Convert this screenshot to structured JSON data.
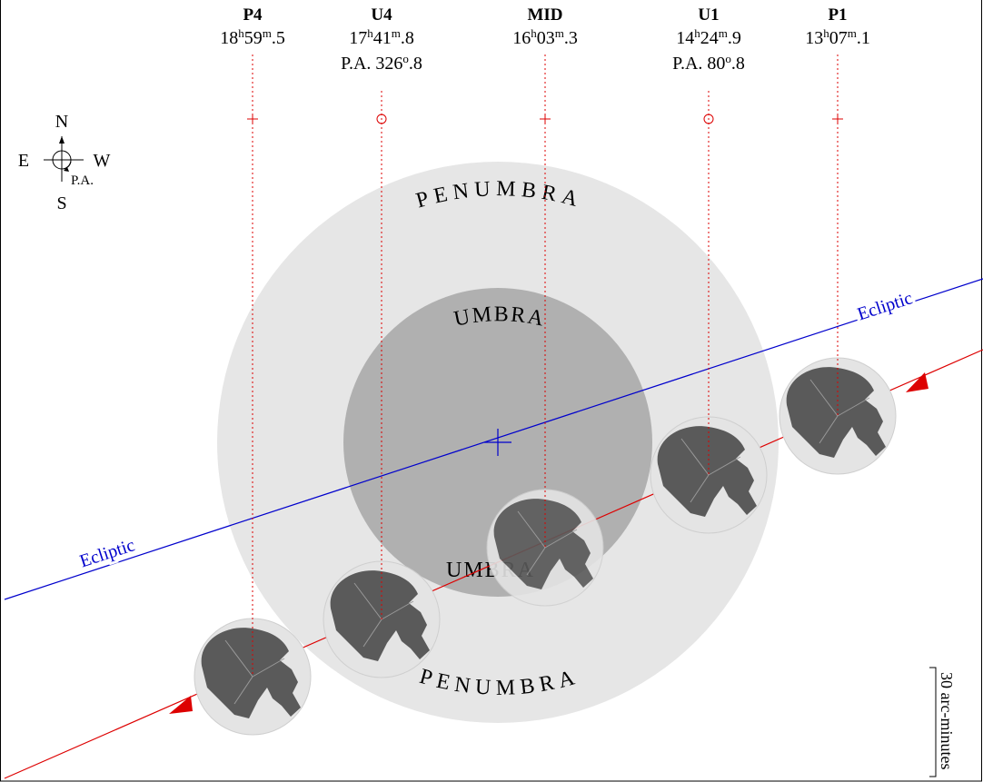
{
  "contacts": [
    {
      "name": "P4",
      "time": [
        "18",
        "h",
        "59",
        "m",
        ".5"
      ]
    },
    {
      "name": "U4",
      "time": [
        "17",
        "h",
        "41",
        "m",
        ".8"
      ],
      "pa": [
        "P.A. 326",
        "o",
        ".8"
      ]
    },
    {
      "name": "MID",
      "time": [
        "16",
        "h",
        "03",
        "m",
        ".3"
      ]
    },
    {
      "name": "U1",
      "time": [
        "14",
        "h",
        "24",
        "m",
        ".9"
      ],
      "pa": [
        "P.A. 80",
        "o",
        ".8"
      ]
    },
    {
      "name": "P1",
      "time": [
        "13",
        "h",
        "07",
        "m",
        ".1"
      ]
    }
  ],
  "compass": {
    "north": "N",
    "east": "E",
    "west": "W",
    "south": "S",
    "pa": "P.A."
  },
  "regions": {
    "penumbra_top": "PENUMBRA",
    "penumbra_bottom": "PENUMBRA",
    "umbra_top": "UMBRA",
    "umbra_bottom": "UMBRA"
  },
  "ecliptic_labels": [
    "Ecliptic",
    "Ecliptic"
  ],
  "scale_label": "30 arc-minutes"
}
